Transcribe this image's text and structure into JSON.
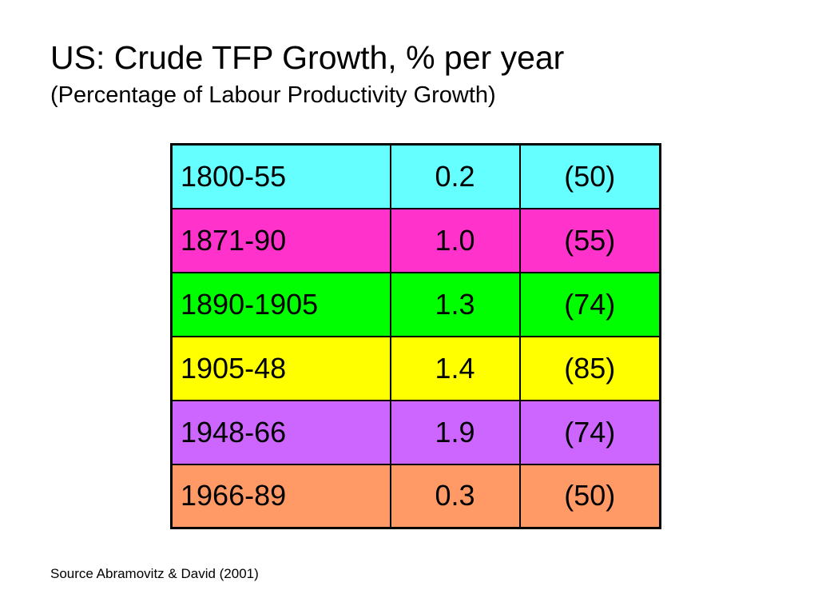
{
  "title": "US: Crude TFP Growth, % per year",
  "subtitle": "(Percentage of Labour Productivity Growth)",
  "rows": [
    {
      "period": "1800-55",
      "growth": "0.2",
      "share": "(50)",
      "color": "#66FFFF"
    },
    {
      "period": "1871-90",
      "growth": "1.0",
      "share": "(55)",
      "color": "#FF33CC"
    },
    {
      "period": "1890-1905",
      "growth": "1.3",
      "share": "(74)",
      "color": "#00FF00"
    },
    {
      "period": "1905-48",
      "growth": "1.4",
      "share": "(85)",
      "color": "#FFFF00"
    },
    {
      "period": "1948-66",
      "growth": "1.9",
      "share": "(74)",
      "color": "#CC66FF"
    },
    {
      "period": "1966-89",
      "growth": "0.3",
      "share": "(50)",
      "color": "#FF9966"
    }
  ],
  "source": "Source Abramovitz & David (2001)"
}
